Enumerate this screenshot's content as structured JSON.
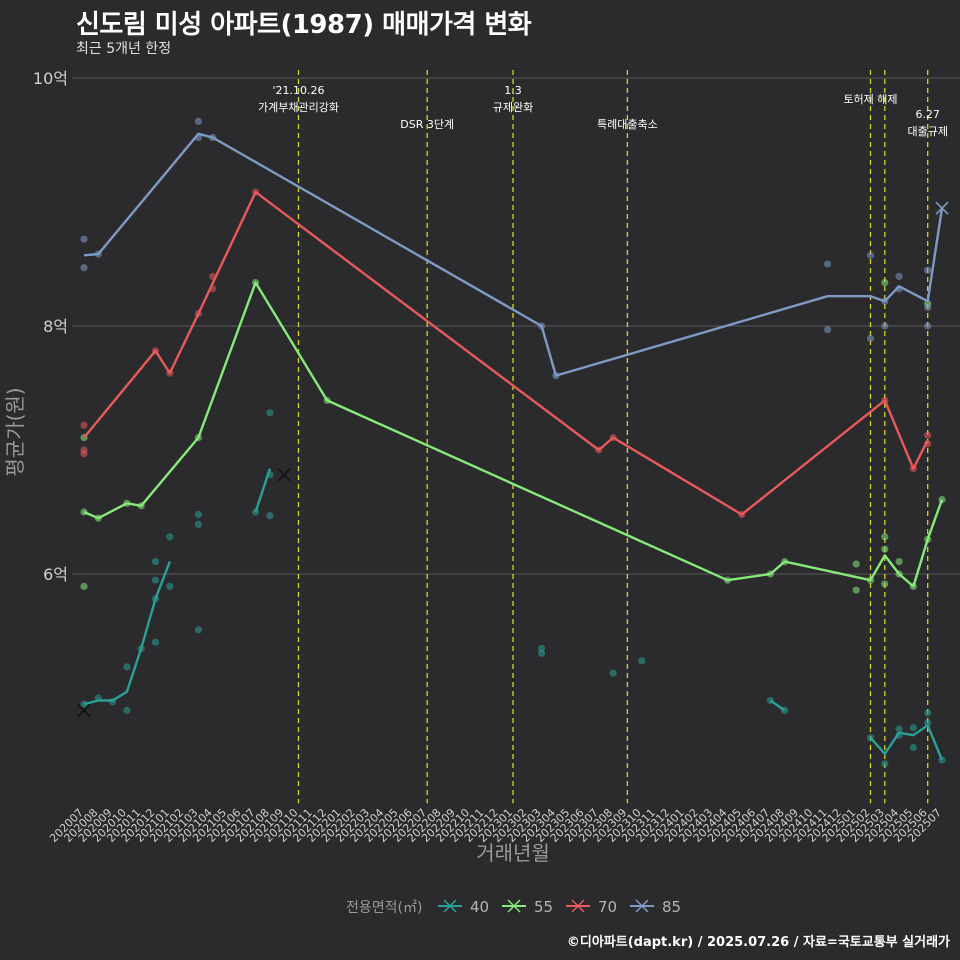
{
  "title": "신도림 미성 아파트(1987) 매매가격 변화",
  "subtitle": "최근 5개년 한정",
  "caption": "©디아파트(dapt.kr) / 2025.07.26 / 자료=국토교통부 실거래가",
  "chart_data": {
    "type": "line",
    "xlabel": "거래년월",
    "ylabel": "평균가(원)",
    "ylim": [
      4.2,
      10.2
    ],
    "y_ticks": [
      6,
      8,
      10
    ],
    "y_tick_labels": [
      "6억",
      "8억",
      "10억"
    ],
    "grid": true,
    "legend_position": "bottom",
    "legend_title": "전용면적(㎡)",
    "months": [
      "202007",
      "202008",
      "202009",
      "202010",
      "202011",
      "202012",
      "202101",
      "202102",
      "202103",
      "202104",
      "202105",
      "202106",
      "202107",
      "202108",
      "202109",
      "202110",
      "202111",
      "202112",
      "202201",
      "202202",
      "202203",
      "202204",
      "202205",
      "202206",
      "202207",
      "202208",
      "202209",
      "202210",
      "202211",
      "202212",
      "202301",
      "202302",
      "202303",
      "202304",
      "202305",
      "202306",
      "202307",
      "202308",
      "202309",
      "202310",
      "202311",
      "202312",
      "202401",
      "202402",
      "202403",
      "202404",
      "202405",
      "202406",
      "202407",
      "202408",
      "202409",
      "202410",
      "202411",
      "202412",
      "202501",
      "202502",
      "202503",
      "202504",
      "202505",
      "202506",
      "202507"
    ],
    "annotations": [
      {
        "month": "202110",
        "lines": [
          "'21.10.26",
          "가계부채관리강화"
        ],
        "row": 0
      },
      {
        "month": "202207",
        "lines": [
          "DSR 3단계"
        ],
        "row": 2
      },
      {
        "month": "202301",
        "lines": [
          "1.3",
          "규제완화"
        ],
        "row": 0
      },
      {
        "month": "202309",
        "lines": [
          "특례대출축소"
        ],
        "row": 2
      },
      {
        "month": "202502",
        "lines": [
          "토허제 해제"
        ],
        "row": 1
      },
      {
        "month": "202503",
        "lines": [],
        "row": 1
      },
      {
        "month": "202506",
        "lines": [
          "6.27",
          "대출규제"
        ],
        "row": 3
      }
    ],
    "series": [
      {
        "name": "40",
        "color": "#2aa198",
        "line": [
          [
            "202007",
            4.95
          ],
          [
            "202008",
            4.98
          ],
          [
            "202009",
            4.98
          ],
          [
            "202010",
            5.05
          ],
          [
            "202011",
            5.4
          ],
          [
            "202012",
            5.8
          ],
          [
            "202101",
            6.1
          ]
        ],
        "line2": [
          [
            "202107",
            6.5
          ],
          [
            "202108",
            6.85
          ]
        ],
        "line3": [
          [
            "202407",
            4.98
          ],
          [
            "202408",
            4.9
          ]
        ],
        "line4": [
          [
            "202502",
            4.68
          ],
          [
            "202503",
            4.55
          ],
          [
            "202504",
            4.72
          ],
          [
            "202505",
            4.7
          ],
          [
            "202506",
            4.78
          ],
          [
            "202507",
            4.5
          ]
        ],
        "points": [
          [
            "202007",
            4.95
          ],
          [
            "202008",
            5.0
          ],
          [
            "202009",
            4.97
          ],
          [
            "202010",
            5.25
          ],
          [
            "202010",
            4.9
          ],
          [
            "202011",
            5.4
          ],
          [
            "202012",
            5.95
          ],
          [
            "202012",
            5.8
          ],
          [
            "202012",
            6.1
          ],
          [
            "202012",
            5.45
          ],
          [
            "202101",
            5.9
          ],
          [
            "202101",
            6.3
          ],
          [
            "202103",
            6.48
          ],
          [
            "202103",
            6.4
          ],
          [
            "202103",
            5.55
          ],
          [
            "202107",
            6.5
          ],
          [
            "202108",
            7.3
          ],
          [
            "202108",
            6.8
          ],
          [
            "202108",
            6.47
          ],
          [
            "202303",
            5.4
          ],
          [
            "202303",
            5.36
          ],
          [
            "202308",
            5.2
          ],
          [
            "202310",
            5.3
          ],
          [
            "202407",
            4.98
          ],
          [
            "202408",
            4.9
          ],
          [
            "202502",
            4.68
          ],
          [
            "202503",
            4.47
          ],
          [
            "202504",
            4.75
          ],
          [
            "202504",
            4.7
          ],
          [
            "202505",
            4.76
          ],
          [
            "202505",
            4.6
          ],
          [
            "202506",
            4.8
          ],
          [
            "202506",
            4.88
          ],
          [
            "202507",
            4.5
          ]
        ],
        "cross": [
          [
            "202007",
            4.9
          ],
          [
            "202109",
            6.8
          ]
        ]
      },
      {
        "name": "55",
        "color": "#86e97a",
        "line": [
          [
            "202007",
            6.5
          ],
          [
            "202008",
            6.45
          ],
          [
            "202010",
            6.57
          ],
          [
            "202011",
            6.55
          ],
          [
            "202103",
            7.1
          ],
          [
            "202107",
            8.35
          ],
          [
            "202112",
            7.4
          ],
          [
            "202404",
            5.95
          ],
          [
            "202407",
            6.0
          ],
          [
            "202408",
            6.1
          ],
          [
            "202502",
            5.95
          ],
          [
            "202503",
            6.15
          ],
          [
            "202504",
            6.0
          ],
          [
            "202505",
            5.9
          ],
          [
            "202506",
            6.28
          ],
          [
            "202507",
            6.6
          ]
        ],
        "points": [
          [
            "202007",
            6.5
          ],
          [
            "202007",
            7.1
          ],
          [
            "202007",
            5.9
          ],
          [
            "202008",
            6.45
          ],
          [
            "202010",
            6.57
          ],
          [
            "202011",
            6.55
          ],
          [
            "202103",
            7.1
          ],
          [
            "202107",
            8.35
          ],
          [
            "202112",
            7.4
          ],
          [
            "202404",
            5.95
          ],
          [
            "202407",
            6.0
          ],
          [
            "202408",
            6.1
          ],
          [
            "202501",
            6.08
          ],
          [
            "202501",
            5.87
          ],
          [
            "202502",
            5.95
          ],
          [
            "202503",
            6.3
          ],
          [
            "202503",
            6.2
          ],
          [
            "202503",
            5.92
          ],
          [
            "202503",
            8.35
          ],
          [
            "202504",
            6.1
          ],
          [
            "202504",
            6.0
          ],
          [
            "202505",
            5.9
          ],
          [
            "202506",
            6.28
          ],
          [
            "202506",
            8.18
          ],
          [
            "202507",
            6.6
          ]
        ]
      },
      {
        "name": "70",
        "color": "#e8595c",
        "line": [
          [
            "202007",
            7.1
          ],
          [
            "202012",
            7.8
          ],
          [
            "202101",
            7.62
          ],
          [
            "202103",
            8.1
          ],
          [
            "202107",
            9.08
          ],
          [
            "202307",
            7.0
          ],
          [
            "202308",
            7.1
          ],
          [
            "202405",
            6.48
          ],
          [
            "202503",
            7.4
          ],
          [
            "202505",
            6.85
          ],
          [
            "202506",
            7.08
          ]
        ],
        "points": [
          [
            "202007",
            7.2
          ],
          [
            "202007",
            7.0
          ],
          [
            "202007",
            6.97
          ],
          [
            "202012",
            7.8
          ],
          [
            "202101",
            7.62
          ],
          [
            "202103",
            8.1
          ],
          [
            "202104",
            8.4
          ],
          [
            "202104",
            8.3
          ],
          [
            "202107",
            9.08
          ],
          [
            "202307",
            7.0
          ],
          [
            "202308",
            7.1
          ],
          [
            "202405",
            6.48
          ],
          [
            "202503",
            7.4
          ],
          [
            "202505",
            6.85
          ],
          [
            "202506",
            7.12
          ],
          [
            "202506",
            7.05
          ]
        ]
      },
      {
        "name": "85",
        "color": "#7f9ac4",
        "line": [
          [
            "202007",
            8.57
          ],
          [
            "202008",
            8.58
          ],
          [
            "202103",
            9.55
          ],
          [
            "202104",
            9.52
          ],
          [
            "202303",
            8.0
          ],
          [
            "202304",
            7.6
          ],
          [
            "202411",
            8.24
          ],
          [
            "202502",
            8.24
          ],
          [
            "202503",
            8.2
          ],
          [
            "202504",
            8.32
          ],
          [
            "202506",
            8.2
          ],
          [
            "202507",
            8.95
          ]
        ],
        "points": [
          [
            "202007",
            8.7
          ],
          [
            "202007",
            8.47
          ],
          [
            "202008",
            8.58
          ],
          [
            "202103",
            9.65
          ],
          [
            "202103",
            9.52
          ],
          [
            "202104",
            9.52
          ],
          [
            "202303",
            8.0
          ],
          [
            "202304",
            7.6
          ],
          [
            "202411",
            8.5
          ],
          [
            "202411",
            7.97
          ],
          [
            "202502",
            8.57
          ],
          [
            "202502",
            7.9
          ],
          [
            "202503",
            8.0
          ],
          [
            "202503",
            8.2
          ],
          [
            "202504",
            8.4
          ],
          [
            "202504",
            8.3
          ],
          [
            "202506",
            8.45
          ],
          [
            "202506",
            8.15
          ],
          [
            "202506",
            8.0
          ]
        ],
        "cross": [
          [
            "202507",
            8.95
          ]
        ]
      }
    ]
  }
}
